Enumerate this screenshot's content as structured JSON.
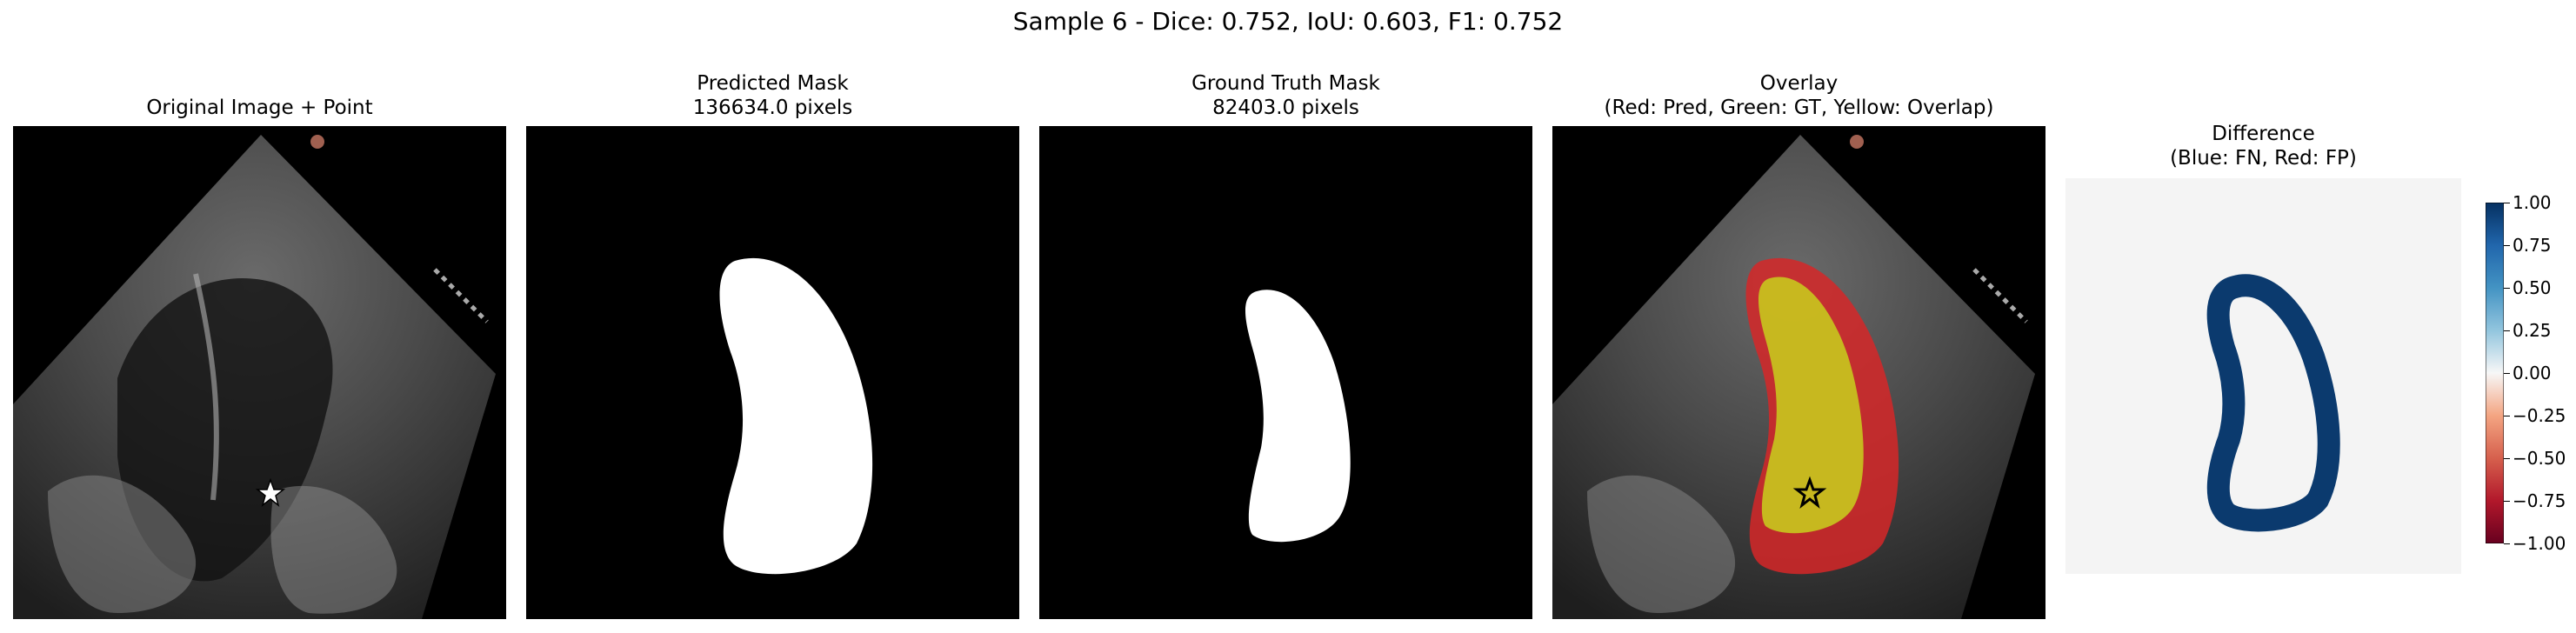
{
  "figure": {
    "title": "Sample 6 - Dice: 0.752, IoU: 0.603, F1: 0.752"
  },
  "panels": [
    {
      "title": "Original Image + Point"
    },
    {
      "title": "Predicted Mask\n136634.0 pixels"
    },
    {
      "title": "Ground Truth Mask\n82403.0 pixels"
    },
    {
      "title": "Overlay\n(Red: Pred, Green: GT, Yellow: Overlap)"
    },
    {
      "title": "Difference\n(Blue: FN, Red: FP)"
    }
  ],
  "colorbar": {
    "ticks": [
      "1.00",
      "0.75",
      "0.50",
      "0.25",
      "0.00",
      "−0.25",
      "−0.50",
      "−0.75",
      "−1.00"
    ],
    "colors": {
      "top": "#053061",
      "mid": "#f7f7f7",
      "bottom": "#67001f"
    }
  },
  "colors": {
    "pred_overlay": "#d62728",
    "overlap": "#c8c81e",
    "fn_blue": "#0b3a6e",
    "star_white": "#ffffff"
  }
}
